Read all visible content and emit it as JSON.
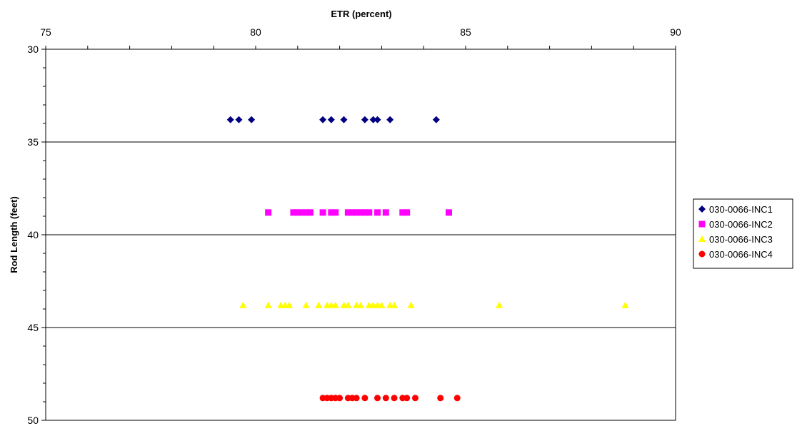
{
  "chart_data": {
    "type": "scatter",
    "title": "",
    "xlabel": "ETR (percent)",
    "ylabel": "Rod Length (feet)",
    "xlim": [
      75,
      90
    ],
    "ylim": [
      30,
      50
    ],
    "y_inverted": true,
    "x_axis_position": "top",
    "x_ticks": [
      75,
      80,
      85,
      90
    ],
    "y_ticks": [
      30,
      35,
      40,
      45,
      50
    ],
    "x_tick_labels": [
      "75",
      "80",
      "85",
      "90"
    ],
    "y_tick_labels": [
      "30",
      "35",
      "40",
      "45",
      "50"
    ],
    "horizontal_gridlines": [
      35,
      40,
      45
    ],
    "legend_position": "right",
    "series": [
      {
        "name": "030-0066-INC1",
        "marker": "diamond",
        "color": "#000080",
        "points": [
          {
            "x": 79.4,
            "y": 33.8
          },
          {
            "x": 79.6,
            "y": 33.8
          },
          {
            "x": 79.9,
            "y": 33.8
          },
          {
            "x": 81.6,
            "y": 33.8
          },
          {
            "x": 81.8,
            "y": 33.8
          },
          {
            "x": 82.1,
            "y": 33.8
          },
          {
            "x": 82.6,
            "y": 33.8
          },
          {
            "x": 82.8,
            "y": 33.8
          },
          {
            "x": 82.9,
            "y": 33.8
          },
          {
            "x": 83.2,
            "y": 33.8
          },
          {
            "x": 84.3,
            "y": 33.8
          }
        ]
      },
      {
        "name": "030-0066-INC2",
        "marker": "square",
        "color": "#ff00ff",
        "points": [
          {
            "x": 80.3,
            "y": 38.8
          },
          {
            "x": 80.9,
            "y": 38.8
          },
          {
            "x": 81.0,
            "y": 38.8
          },
          {
            "x": 81.1,
            "y": 38.8
          },
          {
            "x": 81.2,
            "y": 38.8
          },
          {
            "x": 81.3,
            "y": 38.8
          },
          {
            "x": 81.6,
            "y": 38.8
          },
          {
            "x": 81.8,
            "y": 38.8
          },
          {
            "x": 81.9,
            "y": 38.8
          },
          {
            "x": 82.2,
            "y": 38.8
          },
          {
            "x": 82.3,
            "y": 38.8
          },
          {
            "x": 82.4,
            "y": 38.8
          },
          {
            "x": 82.5,
            "y": 38.8
          },
          {
            "x": 82.6,
            "y": 38.8
          },
          {
            "x": 82.7,
            "y": 38.8
          },
          {
            "x": 82.9,
            "y": 38.8
          },
          {
            "x": 83.1,
            "y": 38.8
          },
          {
            "x": 83.5,
            "y": 38.8
          },
          {
            "x": 83.6,
            "y": 38.8
          },
          {
            "x": 84.6,
            "y": 38.8
          }
        ]
      },
      {
        "name": "030-0066-INC3",
        "marker": "triangle",
        "color": "#ffff00",
        "points": [
          {
            "x": 79.7,
            "y": 43.8
          },
          {
            "x": 80.3,
            "y": 43.8
          },
          {
            "x": 80.6,
            "y": 43.8
          },
          {
            "x": 80.7,
            "y": 43.8
          },
          {
            "x": 80.8,
            "y": 43.8
          },
          {
            "x": 81.2,
            "y": 43.8
          },
          {
            "x": 81.5,
            "y": 43.8
          },
          {
            "x": 81.7,
            "y": 43.8
          },
          {
            "x": 81.8,
            "y": 43.8
          },
          {
            "x": 81.9,
            "y": 43.8
          },
          {
            "x": 82.1,
            "y": 43.8
          },
          {
            "x": 82.2,
            "y": 43.8
          },
          {
            "x": 82.4,
            "y": 43.8
          },
          {
            "x": 82.5,
            "y": 43.8
          },
          {
            "x": 82.7,
            "y": 43.8
          },
          {
            "x": 82.8,
            "y": 43.8
          },
          {
            "x": 82.9,
            "y": 43.8
          },
          {
            "x": 83.0,
            "y": 43.8
          },
          {
            "x": 83.2,
            "y": 43.8
          },
          {
            "x": 83.3,
            "y": 43.8
          },
          {
            "x": 83.7,
            "y": 43.8
          },
          {
            "x": 85.8,
            "y": 43.8
          },
          {
            "x": 88.8,
            "y": 43.8
          }
        ]
      },
      {
        "name": "030-0066-INC4",
        "marker": "circle",
        "color": "#ff0000",
        "points": [
          {
            "x": 81.6,
            "y": 48.8
          },
          {
            "x": 81.7,
            "y": 48.8
          },
          {
            "x": 81.8,
            "y": 48.8
          },
          {
            "x": 81.9,
            "y": 48.8
          },
          {
            "x": 82.0,
            "y": 48.8
          },
          {
            "x": 82.2,
            "y": 48.8
          },
          {
            "x": 82.3,
            "y": 48.8
          },
          {
            "x": 82.4,
            "y": 48.8
          },
          {
            "x": 82.6,
            "y": 48.8
          },
          {
            "x": 82.9,
            "y": 48.8
          },
          {
            "x": 83.1,
            "y": 48.8
          },
          {
            "x": 83.3,
            "y": 48.8
          },
          {
            "x": 83.5,
            "y": 48.8
          },
          {
            "x": 83.6,
            "y": 48.8
          },
          {
            "x": 83.8,
            "y": 48.8
          },
          {
            "x": 84.4,
            "y": 48.8
          },
          {
            "x": 84.8,
            "y": 48.8
          }
        ]
      }
    ]
  }
}
